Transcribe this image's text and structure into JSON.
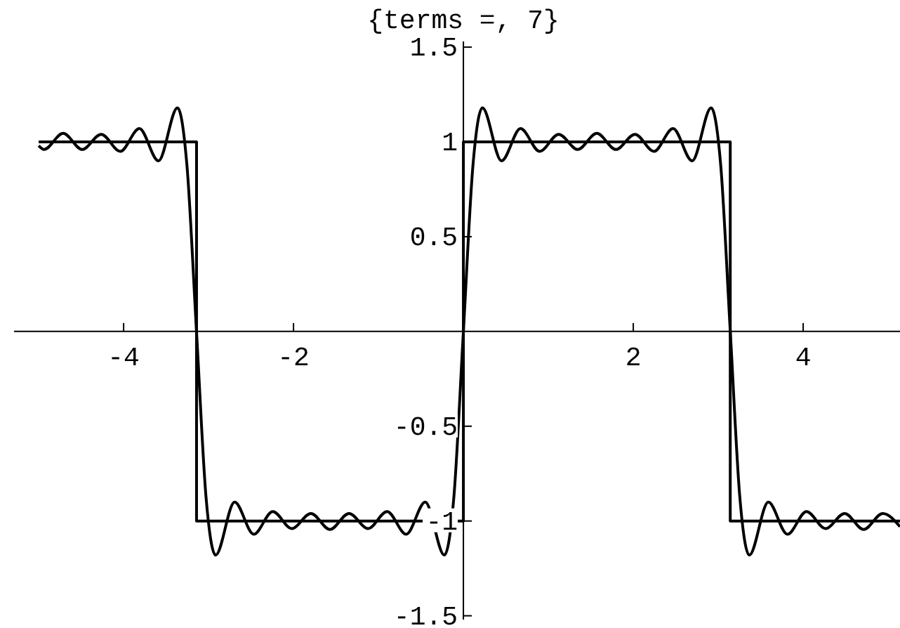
{
  "chart_data": {
    "type": "line",
    "title": "{terms =, 7}",
    "xlim": [
      -5.29,
      5.14
    ],
    "ylim": [
      -1.52,
      1.53
    ],
    "xticks": [
      -4,
      -2,
      2,
      4
    ],
    "yticks": [
      -1.5,
      -1,
      -0.5,
      0.5,
      1,
      1.5
    ],
    "series": [
      {
        "color": "#000000",
        "x": [
          -5,
          -3.1416,
          -3.1416,
          0,
          0,
          3.1416,
          3.1416,
          5.14
        ],
        "values": [
          1,
          1,
          -1,
          -1,
          1,
          1,
          -1,
          -1
        ]
      },
      {
        "color": "#000000",
        "x": [
          -5,
          -4.937,
          -4.712,
          -4.488,
          -4.264,
          -4.039,
          -3.815,
          -3.59,
          -3.366,
          -3.254,
          -3.142,
          -3.03,
          -2.917,
          -2.693,
          -2.468,
          -2.244,
          -2.02,
          -1.795,
          -1.571,
          -1.346,
          -1.122,
          -0.898,
          -0.673,
          -0.449,
          -0.224,
          -0.112,
          0,
          0.112,
          0.224,
          0.449,
          0.673,
          0.898,
          1.122,
          1.346,
          1.571,
          1.795,
          2.02,
          2.244,
          2.468,
          2.693,
          2.917,
          3.03,
          3.142,
          3.254,
          3.366,
          3.59,
          3.815,
          4.039,
          4.264,
          4.488,
          4.712,
          4.937,
          5.14
        ],
        "values": [
          0.98,
          0.96,
          1.045,
          0.96,
          1.04,
          0.95,
          1.07,
          0.9,
          1.18,
          0.873,
          0,
          -0.873,
          -1.18,
          -0.9,
          -1.07,
          -0.95,
          -1.04,
          -0.96,
          -1.045,
          -0.96,
          -1.04,
          -0.95,
          -1.07,
          -0.9,
          -1.18,
          -0.873,
          0,
          0.873,
          1.18,
          0.9,
          1.07,
          0.95,
          1.04,
          0.96,
          1.045,
          0.96,
          1.04,
          0.95,
          1.07,
          0.9,
          1.18,
          0.873,
          0,
          -0.873,
          -1.18,
          -0.9,
          -1.07,
          -0.95,
          -1.04,
          -0.96,
          -1.045,
          -0.96,
          -1.03
        ]
      }
    ]
  }
}
